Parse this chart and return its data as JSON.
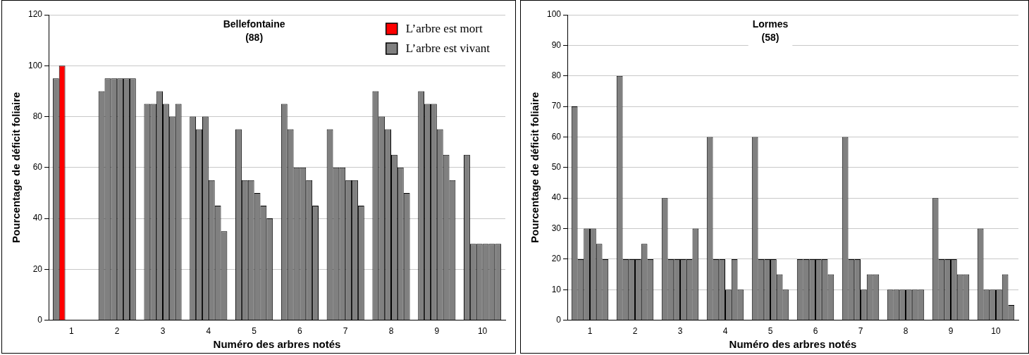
{
  "chart_data": [
    {
      "type": "bar",
      "title": "Bellefontaine",
      "subtitle": "(88)",
      "xlabel": "Numéro des arbres notés",
      "ylabel": "Pourcentage de déficit foliaire",
      "categories": [
        "1",
        "2",
        "3",
        "4",
        "5",
        "6",
        "7",
        "8",
        "9",
        "10"
      ],
      "series": [
        {
          "name": "L’arbre est vivant",
          "color": "#808080",
          "values": [
            95,
            90,
            85,
            80,
            75,
            85,
            75,
            90,
            90,
            65
          ]
        },
        {
          "color": "#808080",
          "values": [
            null,
            95,
            85,
            75,
            55,
            75,
            60,
            80,
            85,
            30
          ]
        },
        {
          "color": "#808080",
          "values": [
            null,
            95,
            90,
            80,
            55,
            60,
            60,
            75,
            85,
            30
          ]
        },
        {
          "color": "#808080",
          "values": [
            null,
            95,
            85,
            55,
            50,
            60,
            55,
            65,
            75,
            30
          ]
        },
        {
          "color": "#808080",
          "values": [
            null,
            95,
            80,
            45,
            45,
            55,
            55,
            60,
            65,
            30
          ]
        },
        {
          "color": "#808080",
          "values": [
            null,
            95,
            85,
            35,
            40,
            45,
            45,
            50,
            55,
            30
          ]
        },
        {
          "name": "L’arbre est mort",
          "color": "#ff0000",
          "values": [
            100,
            null,
            null,
            null,
            null,
            null,
            null,
            null,
            null,
            null
          ]
        }
      ],
      "ylim": [
        0,
        120
      ],
      "yticks": [
        0,
        20,
        40,
        60,
        80,
        100,
        120
      ],
      "grid": "y",
      "legend": "top right"
    },
    {
      "type": "bar",
      "title": "Lormes",
      "subtitle": "(58)",
      "xlabel": "Numéro des arbres notés",
      "ylabel": "Pourcentage de déficit foliaire",
      "categories": [
        "1",
        "2",
        "3",
        "4",
        "5",
        "6",
        "7",
        "8",
        "9",
        "10"
      ],
      "series": [
        {
          "color": "#808080",
          "values": [
            70,
            80,
            40,
            60,
            60,
            20,
            60,
            10,
            40,
            30
          ]
        },
        {
          "color": "#808080",
          "values": [
            20,
            20,
            20,
            20,
            20,
            20,
            20,
            10,
            20,
            10
          ]
        },
        {
          "color": "#808080",
          "values": [
            30,
            20,
            20,
            20,
            20,
            20,
            20,
            10,
            20,
            10
          ]
        },
        {
          "color": "#808080",
          "values": [
            30,
            20,
            20,
            10,
            20,
            20,
            10,
            10,
            20,
            10
          ]
        },
        {
          "color": "#808080",
          "values": [
            25,
            25,
            20,
            20,
            15,
            20,
            15,
            10,
            15,
            15
          ]
        },
        {
          "color": "#808080",
          "values": [
            20,
            20,
            30,
            10,
            10,
            15,
            15,
            10,
            15,
            5
          ]
        }
      ],
      "ylim": [
        0,
        100
      ],
      "yticks": [
        0,
        10,
        20,
        30,
        40,
        50,
        60,
        70,
        80,
        90,
        100
      ],
      "grid": "y",
      "legend": false
    }
  ]
}
